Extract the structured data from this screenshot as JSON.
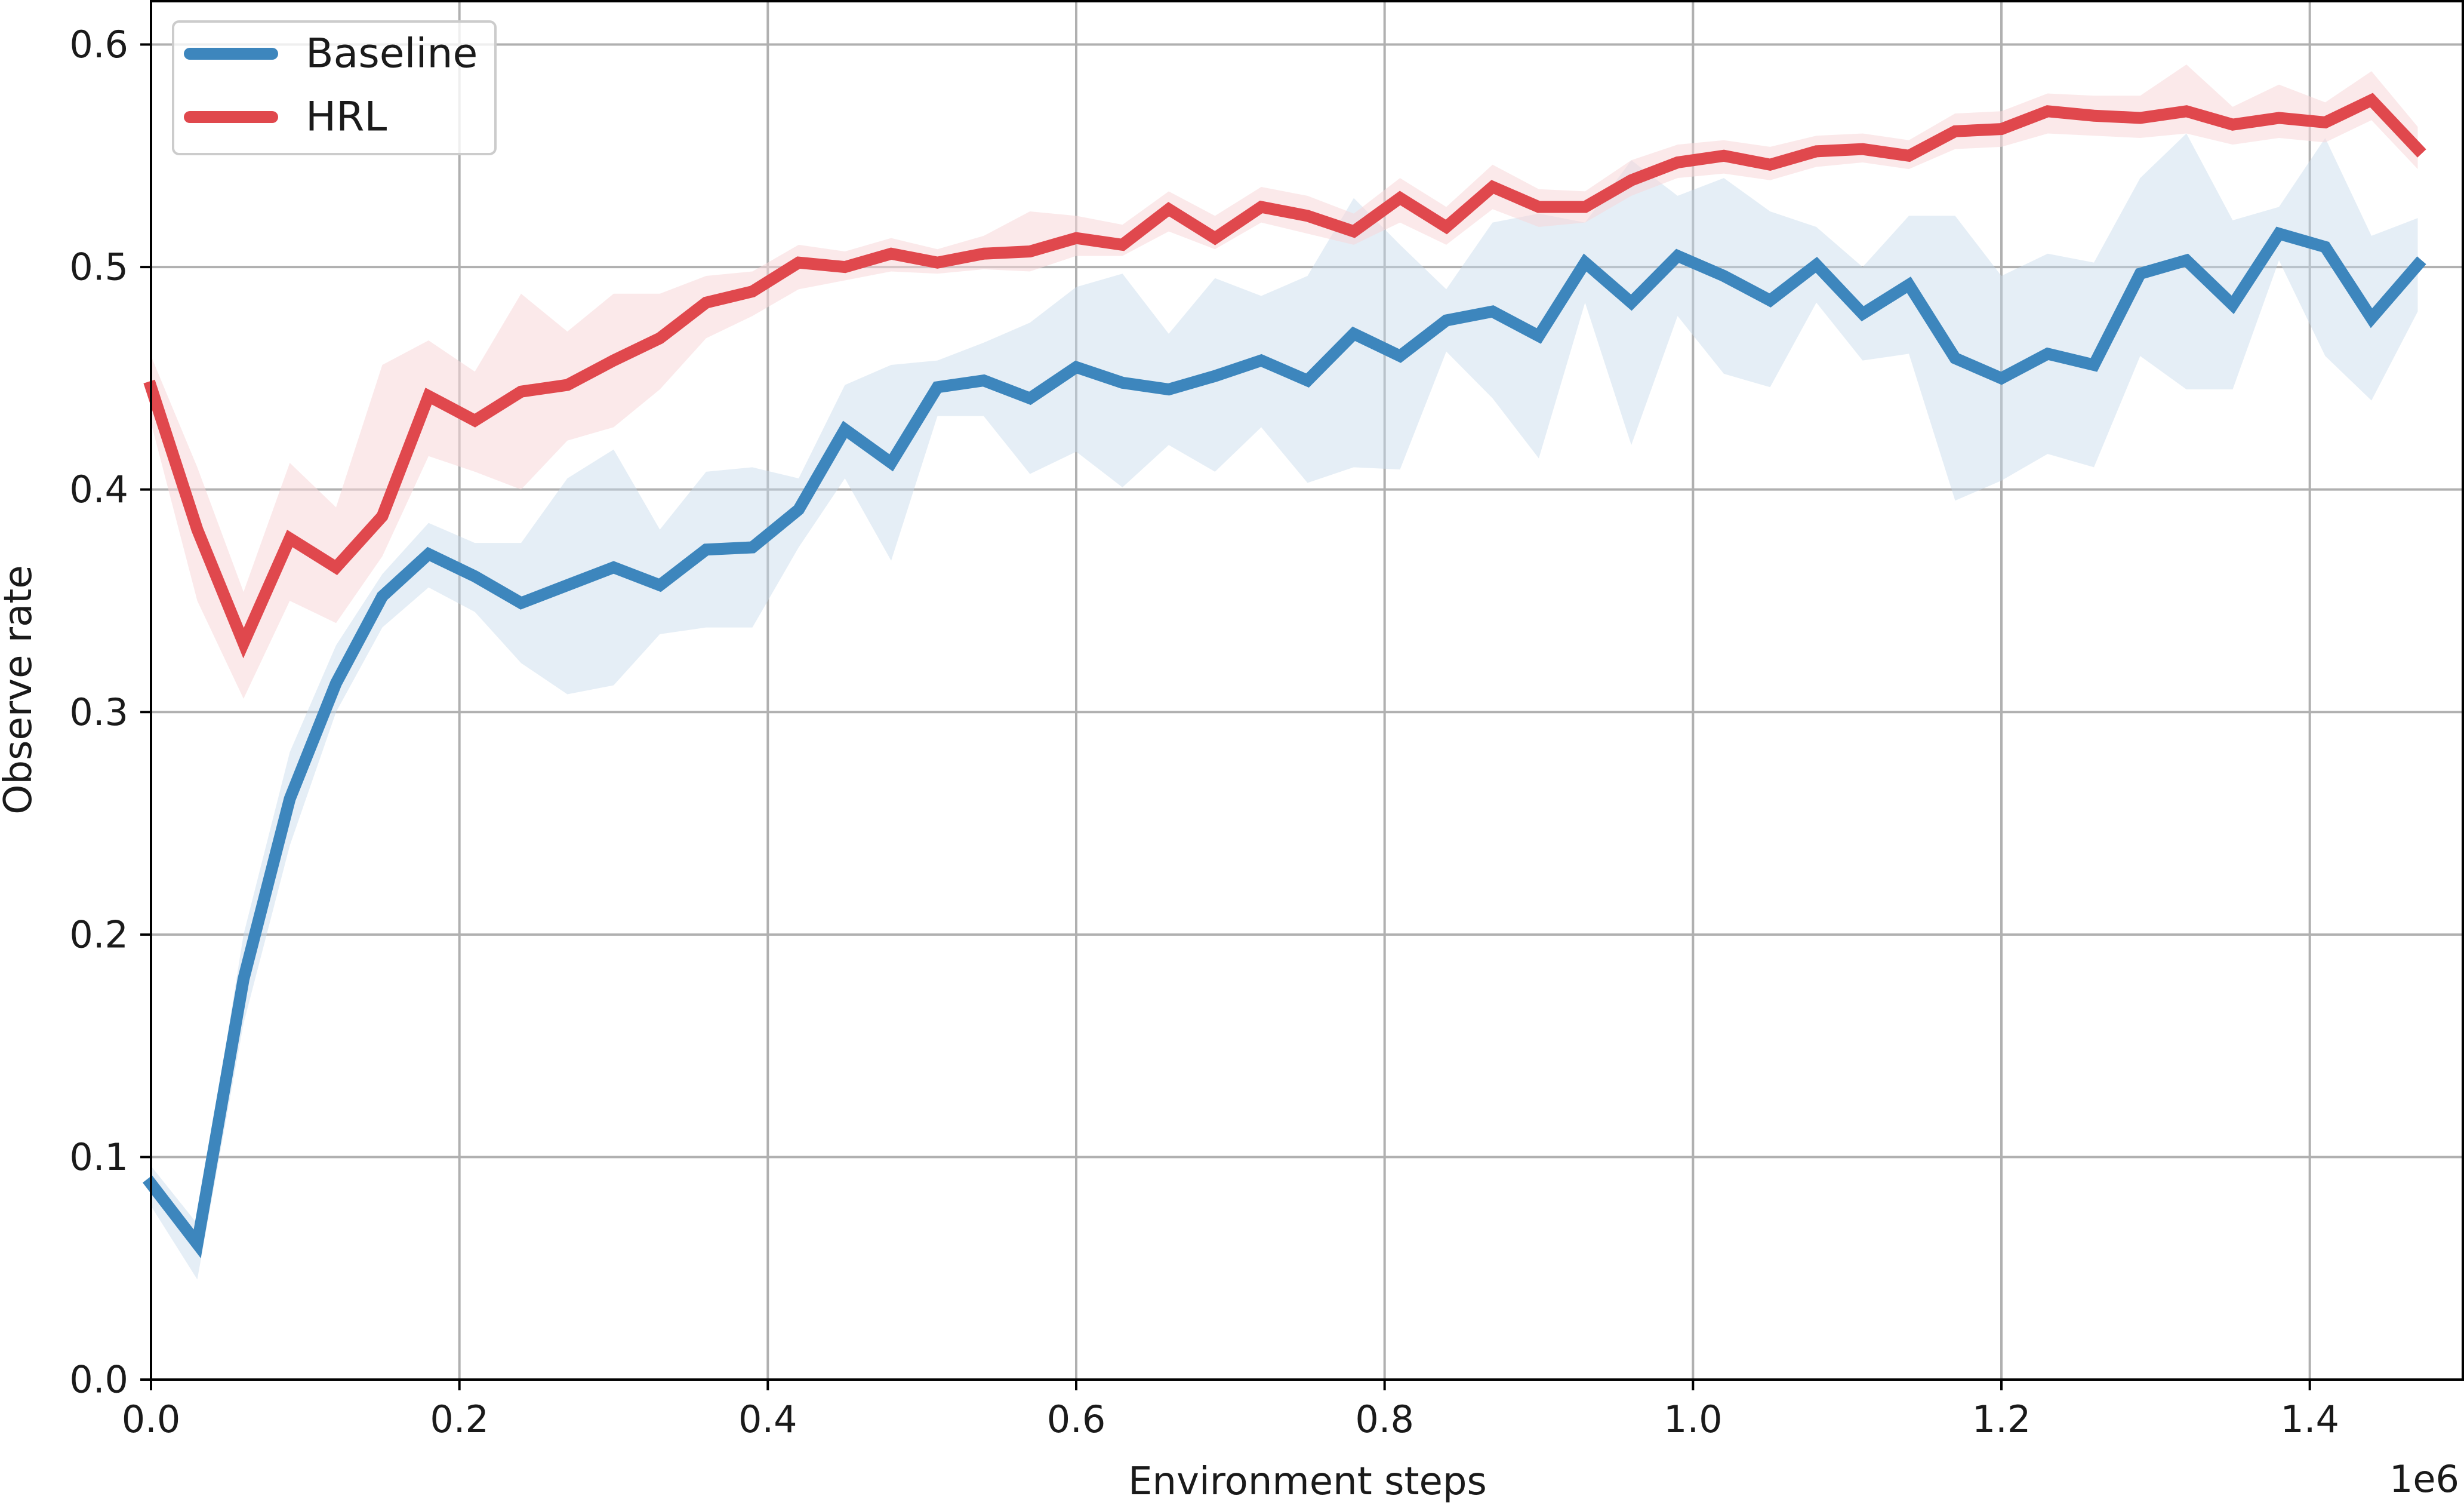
{
  "chart_data": {
    "type": "line",
    "title": "",
    "xlabel": "Environment steps",
    "ylabel": "Observe rate",
    "x_offset_label": "1e6",
    "xlim": [
      0.0,
      1.5
    ],
    "ylim": [
      0.0,
      0.62
    ],
    "x_ticks": [
      0.0,
      0.2,
      0.4,
      0.6,
      0.8,
      1.0,
      1.2,
      1.4
    ],
    "x_tick_labels": [
      "0.0",
      "0.2",
      "0.4",
      "0.6",
      "0.8",
      "1.0",
      "1.2",
      "1.4"
    ],
    "y_ticks": [
      0.0,
      0.1,
      0.2,
      0.3,
      0.4,
      0.5,
      0.6
    ],
    "y_tick_labels": [
      "0.0",
      "0.1",
      "0.2",
      "0.3",
      "0.4",
      "0.5",
      "0.6"
    ],
    "grid": true,
    "legend_position": "top-left",
    "x": [
      0.0,
      0.03,
      0.06,
      0.09,
      0.12,
      0.15,
      0.18,
      0.21,
      0.24,
      0.27,
      0.3,
      0.33,
      0.36,
      0.39,
      0.42,
      0.45,
      0.48,
      0.51,
      0.54,
      0.57,
      0.6,
      0.63,
      0.66,
      0.69,
      0.72,
      0.75,
      0.78,
      0.81,
      0.84,
      0.87,
      0.9,
      0.93,
      0.96,
      0.99,
      1.02,
      1.05,
      1.08,
      1.11,
      1.14,
      1.17,
      1.2,
      1.23,
      1.26,
      1.29,
      1.32,
      1.35,
      1.38,
      1.41,
      1.44,
      1.47
    ],
    "series": [
      {
        "name": "Baseline",
        "color": "#3d86bd",
        "band_color": "#c6d9ec",
        "values": [
          0.088,
          0.061,
          0.18,
          0.261,
          0.313,
          0.352,
          0.371,
          0.361,
          0.349,
          0.357,
          0.365,
          0.357,
          0.373,
          0.374,
          0.391,
          0.427,
          0.412,
          0.446,
          0.449,
          0.441,
          0.455,
          0.448,
          0.445,
          0.451,
          0.458,
          0.449,
          0.47,
          0.46,
          0.476,
          0.48,
          0.469,
          0.502,
          0.484,
          0.505,
          0.496,
          0.485,
          0.501,
          0.479,
          0.492,
          0.459,
          0.45,
          0.461,
          0.456,
          0.497,
          0.503,
          0.483,
          0.515,
          0.509,
          0.477,
          0.501
        ],
        "lower": [
          0.078,
          0.045,
          0.16,
          0.24,
          0.3,
          0.338,
          0.356,
          0.345,
          0.322,
          0.308,
          0.312,
          0.335,
          0.338,
          0.338,
          0.374,
          0.405,
          0.368,
          0.433,
          0.433,
          0.407,
          0.417,
          0.401,
          0.42,
          0.408,
          0.428,
          0.403,
          0.41,
          0.409,
          0.462,
          0.441,
          0.414,
          0.484,
          0.42,
          0.478,
          0.452,
          0.446,
          0.484,
          0.458,
          0.461,
          0.395,
          0.404,
          0.416,
          0.41,
          0.46,
          0.445,
          0.445,
          0.503,
          0.46,
          0.44,
          0.48
        ],
        "upper": [
          0.096,
          0.07,
          0.2,
          0.282,
          0.33,
          0.362,
          0.385,
          0.376,
          0.376,
          0.405,
          0.418,
          0.382,
          0.408,
          0.41,
          0.405,
          0.447,
          0.456,
          0.458,
          0.466,
          0.475,
          0.491,
          0.497,
          0.47,
          0.495,
          0.487,
          0.496,
          0.531,
          0.51,
          0.49,
          0.52,
          0.524,
          0.52,
          0.548,
          0.532,
          0.54,
          0.525,
          0.518,
          0.5,
          0.523,
          0.523,
          0.496,
          0.506,
          0.502,
          0.54,
          0.56,
          0.521,
          0.527,
          0.558,
          0.514,
          0.522
        ]
      },
      {
        "name": "HRL",
        "color": "#e0484d",
        "band_color": "#f8d7d8",
        "values": [
          0.446,
          0.382,
          0.331,
          0.378,
          0.365,
          0.388,
          0.442,
          0.431,
          0.444,
          0.447,
          0.458,
          0.468,
          0.484,
          0.489,
          0.502,
          0.5,
          0.506,
          0.502,
          0.506,
          0.507,
          0.513,
          0.51,
          0.526,
          0.513,
          0.527,
          0.523,
          0.516,
          0.531,
          0.518,
          0.536,
          0.527,
          0.527,
          0.539,
          0.547,
          0.55,
          0.546,
          0.552,
          0.553,
          0.55,
          0.561,
          0.562,
          0.57,
          0.568,
          0.567,
          0.57,
          0.564,
          0.567,
          0.565,
          0.575,
          0.553
        ],
        "lower": [
          0.43,
          0.35,
          0.306,
          0.35,
          0.34,
          0.37,
          0.415,
          0.408,
          0.4,
          0.422,
          0.428,
          0.445,
          0.468,
          0.478,
          0.49,
          0.494,
          0.498,
          0.497,
          0.499,
          0.498,
          0.505,
          0.505,
          0.516,
          0.508,
          0.52,
          0.515,
          0.51,
          0.52,
          0.51,
          0.526,
          0.518,
          0.52,
          0.532,
          0.54,
          0.542,
          0.539,
          0.545,
          0.547,
          0.544,
          0.553,
          0.554,
          0.56,
          0.559,
          0.558,
          0.56,
          0.555,
          0.558,
          0.556,
          0.566,
          0.544
        ],
        "upper": [
          0.46,
          0.41,
          0.354,
          0.412,
          0.392,
          0.456,
          0.467,
          0.453,
          0.488,
          0.471,
          0.488,
          0.488,
          0.496,
          0.498,
          0.51,
          0.507,
          0.513,
          0.508,
          0.514,
          0.525,
          0.523,
          0.519,
          0.534,
          0.523,
          0.536,
          0.532,
          0.524,
          0.54,
          0.527,
          0.546,
          0.535,
          0.534,
          0.548,
          0.555,
          0.557,
          0.554,
          0.559,
          0.56,
          0.557,
          0.569,
          0.57,
          0.578,
          0.577,
          0.577,
          0.591,
          0.572,
          0.582,
          0.574,
          0.588,
          0.563
        ]
      }
    ]
  }
}
